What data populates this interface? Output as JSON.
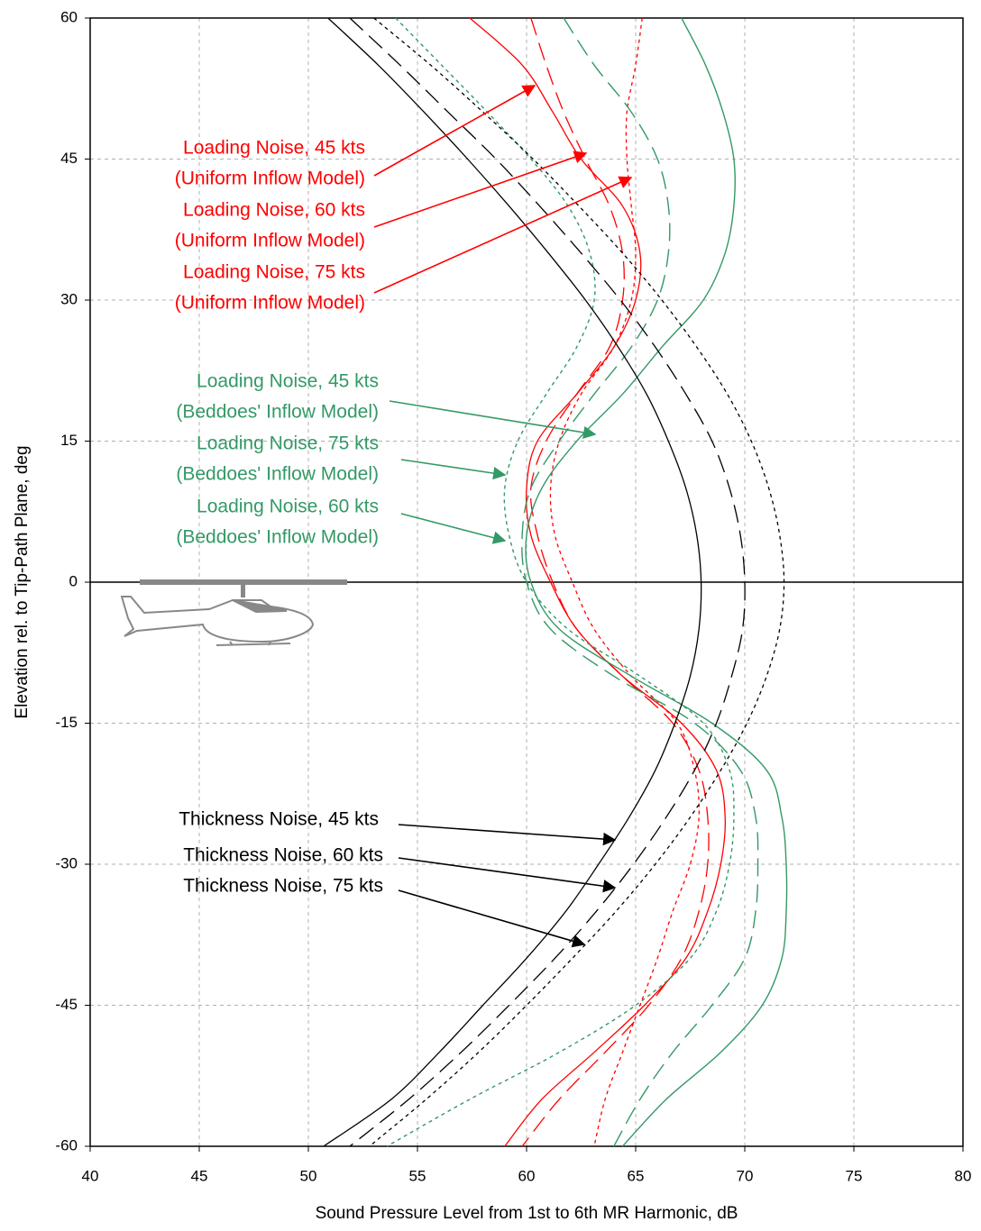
{
  "chart_data": {
    "type": "line",
    "orientation": "horizontal",
    "x_label": "Sound Pressure Level from 1st to 6th MR Harmonic, dB",
    "y_label": "Elevation rel. to Tip-Path Plane, deg",
    "xlim": [
      40,
      80
    ],
    "xticks": [
      40,
      45,
      50,
      55,
      60,
      65,
      70,
      75,
      80
    ],
    "ylim": [
      -60,
      60
    ],
    "yticks": [
      -60,
      -45,
      -30,
      -15,
      0,
      15,
      30,
      45,
      60
    ],
    "grid": true,
    "y": [
      60,
      55,
      50,
      45,
      40,
      35,
      30,
      25,
      20,
      15,
      10,
      5,
      0,
      -5,
      -10,
      -15,
      -20,
      -25,
      -30,
      -35,
      -40,
      -45,
      -50,
      -55,
      -60
    ],
    "series": [
      {
        "name": "Loading Noise, 45 kts",
        "name_line2": "(Uniform Inflow Model)",
        "color": "#ff0000",
        "dash": "solid",
        "values": [
          57.4,
          59.8,
          61.2,
          62.5,
          64.4,
          65.2,
          65.0,
          64.0,
          62.3,
          60.5,
          60.0,
          60.2,
          61.1,
          62.3,
          64.4,
          67.1,
          68.7,
          69.1,
          68.9,
          68.3,
          67.3,
          65.4,
          63.1,
          60.7,
          59.0
        ]
      },
      {
        "name": "Loading Noise, 60 kts",
        "name_line2": "(Uniform Inflow Model)",
        "color": "#ff0000",
        "dash": "long",
        "values": [
          60.2,
          60.9,
          61.7,
          62.7,
          63.8,
          64.4,
          64.4,
          63.8,
          62.3,
          60.9,
          60.2,
          60.5,
          61.2,
          62.3,
          64.4,
          66.7,
          67.9,
          68.3,
          68.3,
          67.9,
          67.1,
          65.6,
          63.6,
          61.5,
          59.8
        ]
      },
      {
        "name": "Loading Noise, 75 kts",
        "name_line2": "(Uniform Inflow Model)",
        "color": "#ff0000",
        "dash": "short",
        "values": [
          65.3,
          65.0,
          64.6,
          64.6,
          64.8,
          65.0,
          64.8,
          64.0,
          62.5,
          61.5,
          61.1,
          61.3,
          62.1,
          63.1,
          64.8,
          66.9,
          67.7,
          67.9,
          67.5,
          66.7,
          66.0,
          65.2,
          64.4,
          63.6,
          63.1
        ]
      },
      {
        "name": "Loading Noise, 45 kts",
        "name_line2": "(Beddoes' Inflow Model)",
        "color": "#339966",
        "dash": "solid",
        "values": [
          67.1,
          68.2,
          69.0,
          69.5,
          69.5,
          69.1,
          68.1,
          66.2,
          64.4,
          62.3,
          60.7,
          60.0,
          60.2,
          61.5,
          64.8,
          68.5,
          71.0,
          71.7,
          71.9,
          71.9,
          71.7,
          70.8,
          68.9,
          66.4,
          64.4
        ]
      },
      {
        "name": "Loading Noise, 75 kts",
        "name_line2": "(Beddoes' Inflow Model)",
        "color": "#339966",
        "dash": "short",
        "values": [
          54.0,
          56.1,
          58.2,
          60.2,
          61.9,
          62.9,
          63.1,
          62.3,
          60.9,
          59.6,
          59.0,
          59.2,
          60.0,
          61.9,
          65.2,
          68.1,
          69.3,
          69.5,
          69.3,
          68.7,
          67.5,
          65.0,
          61.5,
          57.4,
          53.6
        ]
      },
      {
        "name": "Loading Noise, 60 kts",
        "name_line2": "(Beddoes' Inflow Model)",
        "color": "#339966",
        "dash": "long",
        "values": [
          61.7,
          63.1,
          64.8,
          66.0,
          66.5,
          66.5,
          66.0,
          64.8,
          63.1,
          61.5,
          60.2,
          59.8,
          60.0,
          61.1,
          64.0,
          67.7,
          69.8,
          70.5,
          70.6,
          70.5,
          70.0,
          68.5,
          66.7,
          65.2,
          64.0
        ]
      },
      {
        "name": "Thickness Noise, 45 kts",
        "color": "#000000",
        "dash": "solid",
        "values": [
          50.9,
          53.2,
          55.3,
          57.3,
          59.2,
          61.0,
          62.7,
          64.2,
          65.5,
          66.5,
          67.3,
          67.8,
          68.0,
          67.9,
          67.5,
          66.8,
          65.9,
          64.7,
          63.3,
          61.8,
          60.0,
          58.0,
          56.0,
          53.8,
          50.7
        ]
      },
      {
        "name": "Thickness Noise, 60 kts",
        "color": "#000000",
        "dash": "long",
        "values": [
          51.9,
          54.2,
          56.4,
          58.6,
          60.6,
          62.5,
          64.3,
          65.9,
          67.3,
          68.5,
          69.3,
          69.8,
          70.0,
          69.9,
          69.4,
          68.7,
          67.7,
          66.4,
          64.9,
          63.2,
          61.3,
          59.2,
          57.0,
          54.6,
          51.9
        ]
      },
      {
        "name": "Thickness Noise, 75 kts",
        "color": "#000000",
        "dash": "short",
        "values": [
          53.0,
          55.6,
          58.0,
          60.3,
          62.4,
          64.4,
          66.2,
          67.8,
          69.2,
          70.3,
          71.1,
          71.6,
          71.8,
          71.6,
          71.0,
          70.1,
          68.9,
          67.5,
          65.9,
          64.1,
          62.1,
          60.0,
          57.8,
          55.4,
          52.8
        ]
      }
    ]
  }
}
